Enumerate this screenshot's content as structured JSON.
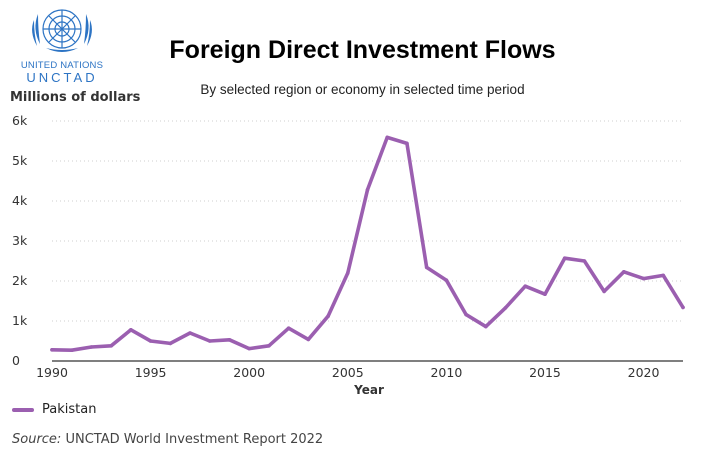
{
  "logo": {
    "line1": "UNITED NATIONS",
    "line2": "UNCTAD"
  },
  "chart_data": {
    "type": "line",
    "title": "Foreign Direct Investment Flows",
    "subtitle": "By selected region or economy in selected time period",
    "ylabel": "Millions of dollars",
    "xlabel": "Year",
    "x": [
      1990,
      1991,
      1992,
      1993,
      1994,
      1995,
      1996,
      1997,
      1998,
      1999,
      2000,
      2001,
      2002,
      2003,
      2004,
      2005,
      2006,
      2007,
      2008,
      2009,
      2010,
      2011,
      2012,
      2013,
      2014,
      2015,
      2016,
      2017,
      2018,
      2019,
      2020,
      2021,
      2022
    ],
    "series": [
      {
        "name": "Pakistan",
        "color": "#9b5fb0",
        "values": [
          280,
          270,
          350,
          380,
          780,
          500,
          440,
          700,
          500,
          530,
          310,
          380,
          820,
          540,
          1120,
          2200,
          4280,
          5590,
          5440,
          2340,
          2020,
          1160,
          860,
          1330,
          1870,
          1670,
          2570,
          2500,
          1740,
          2230,
          2060,
          2140,
          1340
        ]
      }
    ],
    "xlim": [
      1990,
      2022
    ],
    "ylim": [
      0,
      6000
    ],
    "xticks": [
      1990,
      1995,
      2000,
      2005,
      2010,
      2015,
      2020
    ],
    "yticks": [
      0,
      1000,
      2000,
      3000,
      4000,
      5000,
      6000
    ],
    "ytick_labels": [
      "0",
      "1k",
      "2k",
      "3k",
      "4k",
      "5k",
      "6k"
    ],
    "grid": "horizontal-dotted",
    "legend": "bottom-left"
  },
  "source": {
    "prefix": "Source:",
    "text": " UNCTAD World Investment Report 2022"
  }
}
